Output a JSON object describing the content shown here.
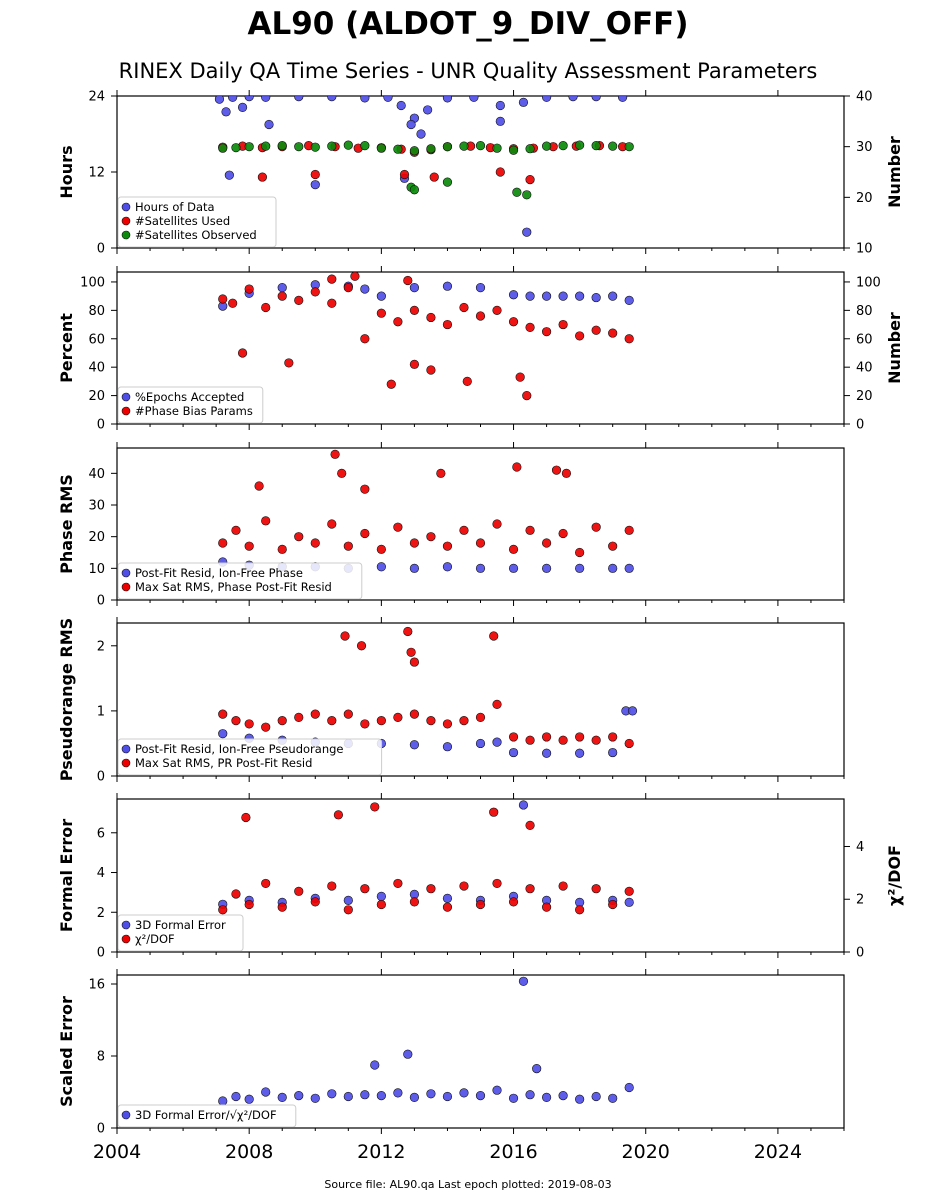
{
  "title": "AL90 (ALDOT_9_DIV_OFF)",
  "subtitle": "RINEX Daily QA Time Series - UNR Quality Assessment Parameters",
  "footer": "Source file: AL90.qa Last epoch plotted: 2019-08-03",
  "colors": {
    "blue": "#4f4fe8",
    "red": "#ee0000",
    "green": "#0b8a0b",
    "marker_edge": "#111111"
  },
  "chart_data": [
    {
      "id": "hours",
      "type": "scatter",
      "xlim": [
        2004,
        2026
      ],
      "ylim": [
        0,
        24
      ],
      "y2lim": [
        10,
        40
      ],
      "ylabel": "Hours",
      "y2label": "Number",
      "yticks": [
        0,
        12,
        24
      ],
      "y2ticks": [
        10,
        20,
        30,
        40
      ],
      "legend_position": "lower-left",
      "series": [
        {
          "name": "Hours of Data",
          "color": "#4f4fe8",
          "axis": "left",
          "x": [
            2007.1,
            2007.5,
            2008.0,
            2008.5,
            2009.5,
            2010.5,
            2011.5,
            2012.2,
            2012.6,
            2013.0,
            2013.4,
            2014.0,
            2014.8,
            2015.6,
            2016.3,
            2017.0,
            2017.8,
            2018.5,
            2019.3,
            2007.3,
            2007.8,
            2008.6,
            2012.9,
            2013.2,
            2015.6,
            2016.4,
            2007.4,
            2010.0,
            2012.7
          ],
          "y": [
            23.5,
            23.8,
            23.9,
            23.8,
            23.9,
            23.9,
            23.7,
            23.8,
            22.5,
            20.5,
            21.8,
            23.7,
            23.8,
            22.5,
            23.0,
            23.8,
            23.9,
            23.9,
            23.8,
            21.5,
            22.2,
            19.5,
            19.5,
            18.0,
            20.0,
            2.5,
            11.5,
            10.0,
            11.0
          ]
        },
        {
          "name": "#Satellites Used",
          "color": "#ee0000",
          "axis": "right",
          "x": [
            2007.2,
            2007.8,
            2008.4,
            2009.0,
            2009.8,
            2010.6,
            2011.3,
            2012.0,
            2012.6,
            2013.0,
            2013.5,
            2014.0,
            2014.7,
            2015.3,
            2016.0,
            2016.6,
            2017.2,
            2017.9,
            2018.6,
            2019.3,
            2008.4,
            2010.0,
            2012.7,
            2013.6,
            2016.5,
            2015.6
          ],
          "y": [
            29.9,
            30.1,
            29.8,
            30.0,
            30.2,
            30.0,
            29.7,
            29.8,
            29.5,
            28.9,
            29.4,
            30.0,
            30.1,
            29.8,
            29.6,
            29.7,
            30.0,
            30.1,
            30.2,
            30.0,
            24.0,
            24.5,
            24.5,
            24.0,
            23.5,
            25.0
          ]
        },
        {
          "name": "#Satellites Observed",
          "color": "#0b8a0b",
          "axis": "right",
          "x": [
            2007.2,
            2007.6,
            2008.0,
            2008.5,
            2009.0,
            2009.5,
            2010.0,
            2010.5,
            2011.0,
            2011.5,
            2012.0,
            2012.5,
            2013.0,
            2013.5,
            2014.0,
            2014.5,
            2015.0,
            2015.5,
            2016.0,
            2016.5,
            2017.0,
            2017.5,
            2018.0,
            2018.5,
            2019.0,
            2019.5,
            2012.9,
            2013.0,
            2016.1,
            2016.4,
            2014.0
          ],
          "y": [
            29.7,
            29.8,
            30.0,
            30.1,
            30.2,
            30.0,
            29.9,
            30.1,
            30.3,
            30.2,
            29.7,
            29.5,
            29.2,
            29.6,
            30.0,
            30.1,
            30.2,
            29.7,
            29.3,
            29.6,
            30.1,
            30.2,
            30.3,
            30.2,
            30.1,
            30.0,
            22.0,
            21.5,
            21.0,
            20.5,
            23.0
          ]
        }
      ]
    },
    {
      "id": "percent",
      "type": "scatter",
      "xlim": [
        2004,
        2026
      ],
      "ylim": [
        0,
        107
      ],
      "y2lim": [
        0,
        107
      ],
      "ylabel": "Percent",
      "y2label": "Number",
      "yticks": [
        0,
        20,
        40,
        60,
        80,
        100
      ],
      "y2ticks": [
        0,
        20,
        40,
        60,
        80,
        100
      ],
      "legend_position": "lower-left",
      "series": [
        {
          "name": "%Epochs Accepted",
          "color": "#4f4fe8",
          "axis": "left",
          "x": [
            2007.2,
            2008.0,
            2009.0,
            2010.0,
            2011.0,
            2011.5,
            2012.0,
            2013.0,
            2014.0,
            2015.0,
            2016.0,
            2016.5,
            2017.0,
            2017.5,
            2018.0,
            2018.5,
            2019.0,
            2019.5
          ],
          "y": [
            83,
            92,
            96,
            98,
            97,
            95,
            90,
            96,
            97,
            96,
            91,
            90,
            90,
            90,
            90,
            89,
            90,
            87
          ]
        },
        {
          "name": "#Phase Bias Params",
          "color": "#ee0000",
          "axis": "right",
          "x": [
            2007.2,
            2007.5,
            2008.0,
            2008.5,
            2009.0,
            2009.5,
            2010.0,
            2010.5,
            2011.0,
            2011.5,
            2012.0,
            2012.5,
            2013.0,
            2013.5,
            2014.0,
            2014.5,
            2015.0,
            2015.5,
            2016.0,
            2016.5,
            2017.0,
            2017.5,
            2018.0,
            2018.5,
            2019.0,
            2019.5,
            2007.8,
            2009.2,
            2012.3,
            2013.0,
            2013.5,
            2014.6,
            2016.2,
            2016.4,
            2010.5,
            2011.2,
            2012.8
          ],
          "y": [
            88,
            85,
            95,
            82,
            90,
            87,
            93,
            85,
            96,
            60,
            78,
            72,
            80,
            75,
            70,
            82,
            76,
            80,
            72,
            68,
            65,
            70,
            62,
            66,
            64,
            60,
            50,
            43,
            28,
            42,
            38,
            30,
            33,
            20,
            102,
            104,
            101
          ]
        }
      ]
    },
    {
      "id": "phase",
      "type": "scatter",
      "xlim": [
        2004,
        2026
      ],
      "ylim": [
        0,
        48
      ],
      "y2lim": null,
      "ylabel": "Phase RMS",
      "y2label": "",
      "yticks": [
        0,
        10,
        20,
        30,
        40
      ],
      "y2ticks": [],
      "legend_position": "lower-left",
      "series": [
        {
          "name": "Post-Fit Resid, Ion-Free Phase",
          "color": "#4f4fe8",
          "axis": "left",
          "x": [
            2007.2,
            2008.0,
            2009.0,
            2010.0,
            2011.0,
            2012.0,
            2013.0,
            2014.0,
            2015.0,
            2016.0,
            2017.0,
            2018.0,
            2019.0,
            2019.5
          ],
          "y": [
            12,
            11,
            10.5,
            10.5,
            10,
            10.5,
            10,
            10.5,
            10,
            10,
            10,
            10,
            10,
            10
          ]
        },
        {
          "name": "Max Sat RMS, Phase Post-Fit Resid",
          "color": "#ee0000",
          "axis": "left",
          "x": [
            2007.2,
            2007.6,
            2008.0,
            2008.5,
            2009.0,
            2009.5,
            2010.0,
            2010.5,
            2011.0,
            2011.5,
            2012.0,
            2012.5,
            2013.0,
            2013.5,
            2014.0,
            2014.5,
            2015.0,
            2015.5,
            2016.0,
            2016.5,
            2017.0,
            2017.5,
            2018.0,
            2018.5,
            2019.0,
            2019.5,
            2010.6,
            2010.8,
            2013.8,
            2016.1,
            2017.3,
            2017.6,
            2008.3,
            2011.5
          ],
          "y": [
            18,
            22,
            17,
            25,
            16,
            20,
            18,
            24,
            17,
            21,
            16,
            23,
            18,
            20,
            17,
            22,
            18,
            24,
            16,
            22,
            18,
            21,
            15,
            23,
            17,
            22,
            46,
            40,
            40,
            42,
            41,
            40,
            36,
            35
          ]
        }
      ]
    },
    {
      "id": "pseudorange",
      "type": "scatter",
      "xlim": [
        2004,
        2026
      ],
      "ylim": [
        0,
        2.35
      ],
      "y2lim": null,
      "ylabel": "Pseudorange RMS",
      "y2label": "",
      "yticks": [
        0,
        1,
        2
      ],
      "y2ticks": [],
      "legend_position": "lower-left",
      "series": [
        {
          "name": "Post-Fit Resid, Ion-Free Pseudorange",
          "color": "#4f4fe8",
          "axis": "left",
          "x": [
            2007.2,
            2008.0,
            2009.0,
            2010.0,
            2011.0,
            2012.0,
            2013.0,
            2014.0,
            2015.0,
            2015.5,
            2016.0,
            2017.0,
            2018.0,
            2019.0,
            2019.4,
            2019.6
          ],
          "y": [
            0.65,
            0.58,
            0.55,
            0.52,
            0.5,
            0.5,
            0.48,
            0.45,
            0.5,
            0.52,
            0.36,
            0.35,
            0.35,
            0.36,
            1.0,
            1.0
          ]
        },
        {
          "name": "Max Sat RMS, PR Post-Fit Resid",
          "color": "#ee0000",
          "axis": "left",
          "x": [
            2007.2,
            2007.6,
            2008.0,
            2008.5,
            2009.0,
            2009.5,
            2010.0,
            2010.5,
            2011.0,
            2011.5,
            2012.0,
            2012.5,
            2013.0,
            2013.5,
            2014.0,
            2014.5,
            2015.0,
            2015.5,
            2016.0,
            2016.5,
            2017.0,
            2017.5,
            2018.0,
            2018.5,
            2019.0,
            2019.5,
            2010.9,
            2011.4,
            2012.8,
            2012.9,
            2013.0,
            2015.4
          ],
          "y": [
            0.95,
            0.85,
            0.8,
            0.75,
            0.85,
            0.9,
            0.95,
            0.85,
            0.95,
            0.8,
            0.85,
            0.9,
            0.95,
            0.85,
            0.8,
            0.85,
            0.9,
            1.1,
            0.6,
            0.55,
            0.6,
            0.55,
            0.6,
            0.55,
            0.6,
            0.5,
            2.15,
            2.0,
            2.22,
            1.9,
            1.75,
            2.15
          ]
        }
      ]
    },
    {
      "id": "formal",
      "type": "scatter",
      "xlim": [
        2004,
        2026
      ],
      "ylim": [
        0,
        7.7
      ],
      "y2lim": [
        0,
        5.8
      ],
      "ylabel": "Formal Error",
      "y2label": "χ²/DOF",
      "yticks": [
        0,
        2,
        4,
        6
      ],
      "y2ticks": [
        0,
        2,
        4
      ],
      "legend_position": "lower-left",
      "series": [
        {
          "name": "3D Formal Error",
          "color": "#4f4fe8",
          "axis": "left",
          "x": [
            2007.2,
            2008.0,
            2009.0,
            2010.0,
            2011.0,
            2012.0,
            2013.0,
            2014.0,
            2015.0,
            2016.0,
            2016.3,
            2017.0,
            2018.0,
            2019.0,
            2019.5
          ],
          "y": [
            2.4,
            2.6,
            2.5,
            2.7,
            2.6,
            2.8,
            2.9,
            2.7,
            2.6,
            2.8,
            7.4,
            2.6,
            2.5,
            2.6,
            2.5
          ]
        },
        {
          "name": "χ²/DOF",
          "color": "#ee0000",
          "axis": "right",
          "x": [
            2007.2,
            2007.6,
            2008.0,
            2008.5,
            2009.0,
            2009.5,
            2010.0,
            2010.5,
            2011.0,
            2011.5,
            2012.0,
            2012.5,
            2013.0,
            2013.5,
            2014.0,
            2014.5,
            2015.0,
            2015.5,
            2016.0,
            2016.5,
            2017.0,
            2017.5,
            2018.0,
            2018.5,
            2019.0,
            2019.5,
            2007.9,
            2010.7,
            2011.8,
            2015.4,
            2016.5
          ],
          "y": [
            1.6,
            2.2,
            1.8,
            2.6,
            1.7,
            2.3,
            1.9,
            2.5,
            1.6,
            2.4,
            1.8,
            2.6,
            1.9,
            2.4,
            1.7,
            2.5,
            1.8,
            2.6,
            1.9,
            2.4,
            1.7,
            2.5,
            1.6,
            2.4,
            1.8,
            2.3,
            5.1,
            5.2,
            5.5,
            5.3,
            4.8
          ]
        }
      ]
    },
    {
      "id": "scaled",
      "type": "scatter",
      "xlim": [
        2004,
        2026
      ],
      "ylim": [
        0,
        17
      ],
      "y2lim": null,
      "ylabel": "Scaled Error",
      "y2label": "",
      "yticks": [
        0,
        8,
        16
      ],
      "y2ticks": [],
      "xticks": [
        2004,
        2008,
        2012,
        2016,
        2020,
        2024
      ],
      "legend_position": "lower-left",
      "series": [
        {
          "name": "3D Formal Error/√χ²/DOF",
          "color": "#4f4fe8",
          "axis": "left",
          "x": [
            2007.2,
            2007.6,
            2008.0,
            2008.5,
            2009.0,
            2009.5,
            2010.0,
            2010.5,
            2011.0,
            2011.5,
            2012.0,
            2012.5,
            2013.0,
            2013.5,
            2014.0,
            2014.5,
            2015.0,
            2015.5,
            2016.0,
            2016.5,
            2017.0,
            2017.5,
            2018.0,
            2018.5,
            2019.0,
            2019.5,
            2011.8,
            2012.8,
            2016.3,
            2016.7
          ],
          "y": [
            3.0,
            3.5,
            3.2,
            4.0,
            3.4,
            3.6,
            3.3,
            3.8,
            3.5,
            3.7,
            3.6,
            3.9,
            3.4,
            3.8,
            3.5,
            3.9,
            3.6,
            4.2,
            3.3,
            3.7,
            3.4,
            3.6,
            3.2,
            3.5,
            3.3,
            4.5,
            7.0,
            8.2,
            16.3,
            6.6
          ]
        }
      ]
    }
  ]
}
